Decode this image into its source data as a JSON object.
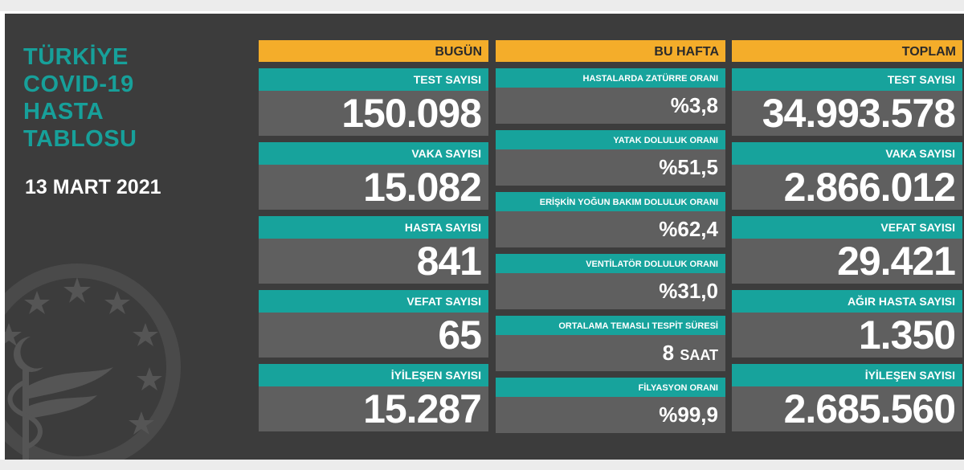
{
  "header": {
    "title_lines": [
      "TÜRKİYE",
      "COVID-19",
      "HASTA",
      "TABLOSU"
    ],
    "date": "13 MART 2021"
  },
  "colors": {
    "teal": "#17a39c",
    "orange": "#f4ad2a",
    "panel": "#3c3c3c",
    "cell": "#5f5f5f"
  },
  "today": {
    "header": "BUGÜN",
    "stats": [
      {
        "label": "TEST SAYISI",
        "value": "150.098"
      },
      {
        "label": "VAKA SAYISI",
        "value": "15.082"
      },
      {
        "label": "HASTA SAYISI",
        "value": "841"
      },
      {
        "label": "VEFAT SAYISI",
        "value": "65"
      },
      {
        "label": "İYİLEŞEN SAYISI",
        "value": "15.287"
      }
    ]
  },
  "this_week": {
    "header": "BU HAFTA",
    "stats": [
      {
        "label": "HASTALARDA ZATÜRRE ORANI",
        "value": "%3,8"
      },
      {
        "label": "YATAK DOLULUK ORANI",
        "value": "%51,5"
      },
      {
        "label": "ERİŞKİN YOĞUN BAKIM DOLULUK ORANI",
        "value": "%62,4"
      },
      {
        "label": "VENTİLATÖR DOLULUK ORANI",
        "value": "%31,0"
      },
      {
        "label": "ORTALAMA TEMASLI TESPİT SÜRESİ",
        "value": "8",
        "unit": "SAAT"
      },
      {
        "label": "FİLYASYON ORANI",
        "value": "%99,9"
      }
    ]
  },
  "total": {
    "header": "TOPLAM",
    "stats": [
      {
        "label": "TEST SAYISI",
        "value": "34.993.578"
      },
      {
        "label": "VAKA SAYISI",
        "value": "2.866.012"
      },
      {
        "label": "VEFAT SAYISI",
        "value": "29.421"
      },
      {
        "label": "AĞIR HASTA SAYISI",
        "value": "1.350"
      },
      {
        "label": "İYİLEŞEN SAYISI",
        "value": "2.685.560"
      }
    ]
  }
}
